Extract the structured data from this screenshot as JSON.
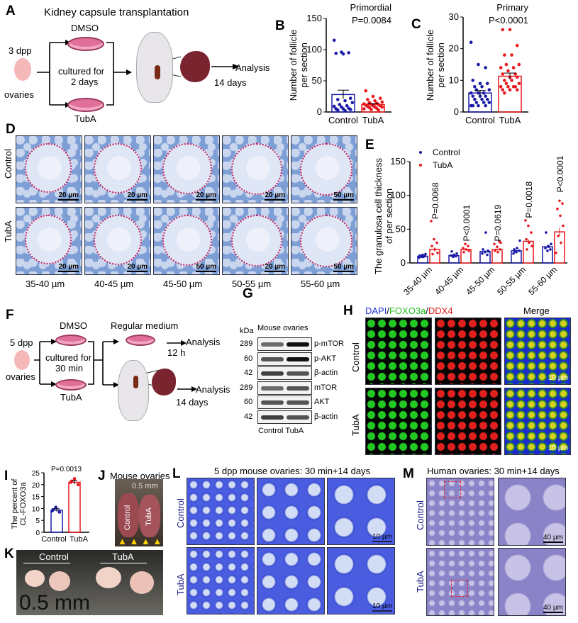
{
  "panel_letters": [
    "A",
    "B",
    "C",
    "D",
    "E",
    "F",
    "G",
    "H",
    "I",
    "J",
    "K",
    "L",
    "M"
  ],
  "panelA": {
    "title": "Kidney capsule transplantation",
    "age": "3 dpp",
    "tissue": "ovaries",
    "top_dish": "DMSO",
    "bottom_dish": "TubA",
    "culture": "cultured for",
    "culture2": "2 days",
    "analysis": "Analysis",
    "duration": "14 days"
  },
  "panelD": {
    "rows": [
      "Control",
      "TubA"
    ],
    "cols": [
      "35-40 µm",
      "40-45 µm",
      "45-50 µm",
      "50-55 µm",
      "55-60 µm"
    ],
    "scales": [
      [
        "20 µm",
        "20 µm",
        "20 µm",
        "20 µm",
        "50 µm"
      ],
      [
        "20 µm",
        "20 µm",
        "50 µm",
        "20 µm",
        "50 µm"
      ]
    ]
  },
  "panelF": {
    "age": "5 dpp",
    "tissue": "ovaries",
    "top_dish": "DMSO",
    "bottom_dish": "TubA",
    "culture": "cultured for",
    "culture2": "30 min",
    "regular": "Regular medium",
    "analysis1": "Analysis",
    "time1": "12 h",
    "analysis2": "Analysis",
    "time2": "14 days"
  },
  "panelG": {
    "title": "Mouse ovaries",
    "unit": "kDa",
    "rows": [
      {
        "kda": "289",
        "label": "p-mTOR"
      },
      {
        "kda": "60",
        "label": "p-AKT"
      },
      {
        "kda": "42",
        "label": "β-actin"
      },
      {
        "kda": "289",
        "label": "mTOR"
      },
      {
        "kda": "60",
        "label": "AKT"
      },
      {
        "kda": "42",
        "label": "β-actin"
      }
    ],
    "lanes": "Control TubA"
  },
  "panelH": {
    "dapi": "DAPI",
    "sep1": "/",
    "foxo": "FOXO3a",
    "sep2": "/",
    "ddx4": "DDX4",
    "merge": "Merge",
    "rows": [
      "Control",
      "TubA"
    ],
    "scale": "10 µm"
  },
  "panelJ": {
    "title": "Mouse ovaries",
    "ruler": "0.5 mm",
    "labels": [
      "Control",
      "TubA"
    ]
  },
  "panelK": {
    "labels": [
      "Control",
      "TubA"
    ],
    "ruler": "0.5 mm"
  },
  "panelL": {
    "title": "5 dpp mouse ovaries: 30 min+14 days",
    "rows": [
      "Control",
      "TubA"
    ],
    "scale": "10 µm"
  },
  "panelM": {
    "title": "Human ovaries: 30 min+14 days",
    "rows": [
      "Control",
      "TubA"
    ],
    "scale": "40 µm"
  },
  "colors": {
    "control": "#1a1aa6",
    "tuba": "#e8191f"
  },
  "chart_data": [
    {
      "id": "B",
      "type": "bar",
      "title": "Primordial",
      "annotation": "P=0.0084",
      "ylabel": "Number of follicle per section",
      "categories": [
        "Control",
        "TubA"
      ],
      "ylim": [
        0,
        150
      ],
      "yticks": [
        0,
        50,
        100,
        150
      ],
      "means": [
        28,
        12
      ],
      "sem": [
        7,
        1.5
      ],
      "points": [
        [
          115,
          96,
          95,
          94,
          93,
          22,
          20,
          18,
          15,
          12,
          10,
          9,
          8,
          6,
          5,
          5,
          4,
          3,
          2
        ],
        [
          34,
          25,
          22,
          20,
          18,
          16,
          15,
          14,
          13,
          12,
          12,
          11,
          10,
          10,
          9,
          8,
          8,
          7,
          6,
          5,
          4,
          3
        ]
      ]
    },
    {
      "id": "C",
      "type": "bar",
      "title": "Primary",
      "annotation": "P<0.0001",
      "ylabel": "Number of follicle per section",
      "categories": [
        "Control",
        "TubA"
      ],
      "ylim": [
        0,
        30
      ],
      "yticks": [
        0,
        10,
        20,
        30
      ],
      "means": [
        6,
        11.3
      ],
      "sem": [
        0.8,
        1
      ],
      "points": [
        [
          22,
          15,
          14,
          10,
          9,
          9,
          8,
          8,
          7,
          7,
          6,
          6,
          6,
          5,
          5,
          5,
          4,
          4,
          4,
          3,
          3,
          3,
          2,
          2,
          2,
          2
        ],
        [
          26,
          26,
          21,
          18,
          18,
          15,
          15,
          14,
          14,
          13,
          12,
          12,
          11,
          11,
          10,
          10,
          9,
          9,
          8,
          8,
          8,
          8,
          7,
          7,
          7,
          6
        ]
      ]
    },
    {
      "id": "E",
      "type": "bar",
      "ylabel": "The granulosa cell thickness of per section",
      "categories": [
        "35-40 µm",
        "40-45 µm",
        "45-50 µm",
        "50-55 µm",
        "55-60 µm"
      ],
      "ylim": [
        0,
        150
      ],
      "yticks": [
        0,
        50,
        100,
        150
      ],
      "legend": "top-left",
      "series": [
        {
          "name": "Control",
          "means": [
            10,
            11,
            17,
            18,
            24
          ],
          "sem": [
            1,
            1,
            2,
            1.5,
            2
          ],
          "points": [
            [
              8,
              9,
              10,
              11,
              12,
              13,
              10,
              9
            ],
            [
              9,
              10,
              11,
              12,
              14,
              17,
              11
            ],
            [
              12,
              14,
              16,
              18,
              20,
              45,
              17
            ],
            [
              14,
              16,
              18,
              20,
              22,
              33,
              17
            ],
            [
              18,
              20,
              22,
              25,
              28,
              45,
              24
            ]
          ]
        },
        {
          "name": "TubA",
          "means": [
            20,
            20,
            20,
            32,
            46
          ],
          "sem": [
            3,
            1.5,
            1.5,
            3,
            6
          ],
          "points": [
            [
              62,
              35,
              30,
              25,
              20,
              15,
              13
            ],
            [
              28,
              25,
              22,
              20,
              18,
              16
            ],
            [
              32,
              28,
              24,
              20,
              18,
              16,
              30
            ],
            [
              63,
              55,
              45,
              35,
              30,
              25,
              20
            ],
            [
              92,
              88,
              80,
              70,
              55,
              40,
              30,
              15
            ]
          ]
        }
      ],
      "annotations": [
        "P=0.0068",
        "P<0.0001",
        "P=0.0619",
        "P=0.0018",
        "P<0.0001"
      ]
    },
    {
      "id": "I",
      "type": "bar",
      "annotation": "P=0.0013",
      "ylabel": "The percent of CL-FOXO3a",
      "categories": [
        "Control",
        "TubA"
      ],
      "ylim": [
        0,
        25
      ],
      "yticks": [
        0,
        5,
        10,
        15,
        20,
        25
      ],
      "means": [
        9.3,
        21
      ],
      "sem": [
        0.6,
        0.8
      ],
      "points": [
        [
          9,
          10.5,
          8.5,
          9.5
        ],
        [
          21,
          22.5,
          20,
          21.5
        ]
      ]
    }
  ]
}
